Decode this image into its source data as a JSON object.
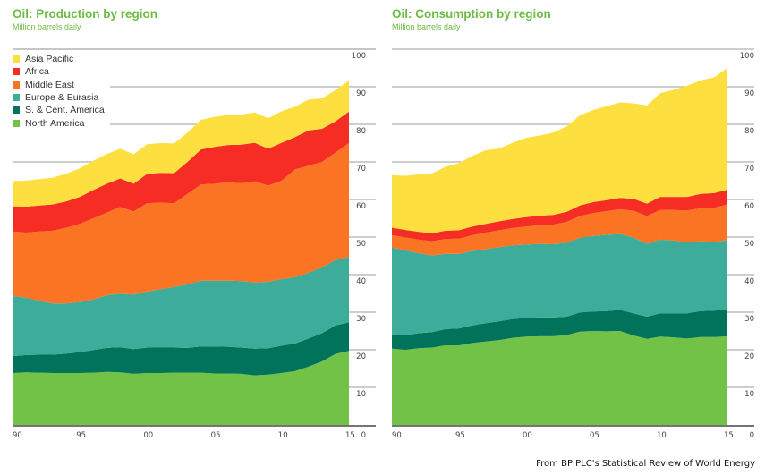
{
  "colors": {
    "title": "#6cbd45",
    "Asia Pacific": "#fde03f",
    "Africa": "#f52d24",
    "Middle East": "#fb7424",
    "Europe & Eurasia": "#3dac9a",
    "S. & Cent. America": "#00735a",
    "North America": "#72c247"
  },
  "legend": [
    "Asia Pacific",
    "Africa",
    "Middle East",
    "Europe & Eurasia",
    "S. & Cent. America",
    "North America"
  ],
  "source": "From BP PLC's Statistical Review of World Energy",
  "chart_data": [
    {
      "type": "area",
      "stacked": true,
      "title": "Oil: Production by region",
      "subtitle": "Million barrels daily",
      "x": [
        1990,
        1991,
        1992,
        1993,
        1994,
        1995,
        1996,
        1997,
        1998,
        1999,
        2000,
        2001,
        2002,
        2003,
        2004,
        2005,
        2006,
        2007,
        2008,
        2009,
        2010,
        2011,
        2012,
        2013,
        2014,
        2015
      ],
      "x_tick_labels": [
        "90",
        "95",
        "00",
        "05",
        "10",
        "15"
      ],
      "y_tick_labels": [
        "0",
        "10",
        "20",
        "30",
        "40",
        "50",
        "60",
        "70",
        "80",
        "90",
        "100"
      ],
      "ylim": [
        0,
        100
      ],
      "grid": true,
      "legend_position": "top-left",
      "series": [
        {
          "name": "North America",
          "values": [
            13.8,
            14.0,
            13.9,
            13.8,
            13.8,
            13.8,
            13.9,
            14.1,
            14.0,
            13.6,
            13.8,
            13.8,
            13.9,
            13.9,
            13.9,
            13.7,
            13.7,
            13.6,
            13.2,
            13.4,
            13.8,
            14.3,
            15.5,
            16.9,
            18.9,
            19.7
          ]
        },
        {
          "name": "S. & Cent. America",
          "values": [
            4.5,
            4.6,
            4.8,
            4.9,
            5.2,
            5.6,
            6.0,
            6.4,
            6.7,
            6.6,
            6.8,
            6.8,
            6.7,
            6.6,
            7.0,
            7.2,
            7.1,
            7.0,
            7.1,
            7.0,
            7.3,
            7.4,
            7.5,
            7.5,
            7.6,
            7.6
          ]
        },
        {
          "name": "Europe & Eurasia",
          "values": [
            16.0,
            15.3,
            14.3,
            13.6,
            13.3,
            13.3,
            13.5,
            14.0,
            14.2,
            14.5,
            14.9,
            15.5,
            16.1,
            16.9,
            17.5,
            17.5,
            17.6,
            17.7,
            17.6,
            17.7,
            17.7,
            17.6,
            17.5,
            17.5,
            17.4,
            17.4
          ]
        },
        {
          "name": "Middle East",
          "values": [
            17.2,
            17.3,
            18.5,
            19.4,
            20.2,
            20.8,
            21.6,
            22.0,
            23.1,
            22.1,
            23.5,
            23.1,
            22.3,
            24.1,
            25.6,
            25.8,
            26.2,
            26.0,
            26.9,
            25.6,
            26.2,
            28.7,
            28.5,
            28.1,
            28.6,
            30.3
          ]
        },
        {
          "name": "Africa",
          "values": [
            6.7,
            6.9,
            6.9,
            7.0,
            7.0,
            7.2,
            7.5,
            7.7,
            7.6,
            7.4,
            7.8,
            7.9,
            8.0,
            8.5,
            9.3,
            9.8,
            9.9,
            10.3,
            10.3,
            9.8,
            10.1,
            8.6,
            9.4,
            8.8,
            8.3,
            8.4
          ]
        },
        {
          "name": "Asia Pacific",
          "values": [
            6.7,
            6.9,
            7.0,
            7.1,
            7.4,
            7.6,
            7.8,
            7.9,
            7.9,
            7.8,
            7.9,
            7.9,
            7.9,
            7.8,
            7.9,
            8.0,
            8.0,
            8.0,
            8.1,
            8.1,
            8.4,
            8.1,
            8.2,
            8.1,
            8.3,
            8.3
          ]
        }
      ]
    },
    {
      "type": "area",
      "stacked": true,
      "title": "Oil: Consumption by region",
      "subtitle": "Million barrels daily",
      "x": [
        1990,
        1991,
        1992,
        1993,
        1994,
        1995,
        1996,
        1997,
        1998,
        1999,
        2000,
        2001,
        2002,
        2003,
        2004,
        2005,
        2006,
        2007,
        2008,
        2009,
        2010,
        2011,
        2012,
        2013,
        2014,
        2015
      ],
      "x_tick_labels": [
        "90",
        "95",
        "00",
        "05",
        "10",
        "15"
      ],
      "y_tick_labels": [
        "0",
        "10",
        "20",
        "30",
        "40",
        "50",
        "60",
        "70",
        "80",
        "90",
        "100"
      ],
      "ylim": [
        0,
        100
      ],
      "grid": true,
      "series": [
        {
          "name": "North America",
          "values": [
            20.3,
            20.0,
            20.4,
            20.6,
            21.2,
            21.2,
            21.8,
            22.2,
            22.6,
            23.2,
            23.5,
            23.6,
            23.6,
            23.9,
            24.8,
            25.0,
            24.9,
            25.0,
            23.8,
            22.9,
            23.5,
            23.3,
            23.0,
            23.4,
            23.4,
            23.6
          ]
        },
        {
          "name": "S. & Cent. America",
          "values": [
            3.8,
            3.9,
            4.0,
            4.1,
            4.3,
            4.5,
            4.7,
            4.9,
            5.0,
            5.0,
            5.0,
            5.0,
            5.0,
            4.9,
            5.1,
            5.2,
            5.4,
            5.6,
            5.9,
            5.9,
            6.2,
            6.4,
            6.7,
            6.9,
            7.0,
            7.1
          ]
        },
        {
          "name": "Europe & Eurasia",
          "values": [
            23.1,
            22.6,
            21.3,
            20.4,
            20.0,
            19.8,
            19.8,
            19.7,
            19.7,
            19.6,
            19.5,
            19.6,
            19.5,
            19.7,
            19.9,
            20.1,
            20.3,
            20.2,
            20.2,
            19.4,
            19.6,
            19.4,
            18.9,
            18.6,
            18.3,
            18.5
          ]
        },
        {
          "name": "Middle East",
          "values": [
            3.3,
            3.4,
            3.6,
            3.8,
            4.0,
            4.1,
            4.2,
            4.4,
            4.5,
            4.6,
            4.8,
            5.0,
            5.2,
            5.5,
            5.8,
            6.1,
            6.3,
            6.6,
            7.1,
            7.4,
            7.9,
            8.1,
            8.5,
            8.8,
            9.1,
            9.5
          ]
        },
        {
          "name": "Africa",
          "values": [
            2.0,
            2.0,
            2.1,
            2.1,
            2.2,
            2.2,
            2.3,
            2.3,
            2.4,
            2.4,
            2.5,
            2.5,
            2.6,
            2.7,
            2.8,
            2.9,
            2.9,
            3.0,
            3.2,
            3.3,
            3.5,
            3.5,
            3.6,
            3.8,
            3.9,
            3.9
          ]
        },
        {
          "name": "Asia Pacific",
          "values": [
            14.0,
            14.4,
            15.3,
            16.0,
            17.0,
            17.9,
            18.8,
            19.6,
            19.4,
            20.3,
            21.1,
            21.3,
            21.9,
            22.7,
            24.0,
            24.5,
            25.0,
            25.4,
            25.4,
            26.1,
            27.6,
            28.5,
            29.6,
            30.2,
            30.8,
            32.4
          ]
        }
      ]
    }
  ]
}
